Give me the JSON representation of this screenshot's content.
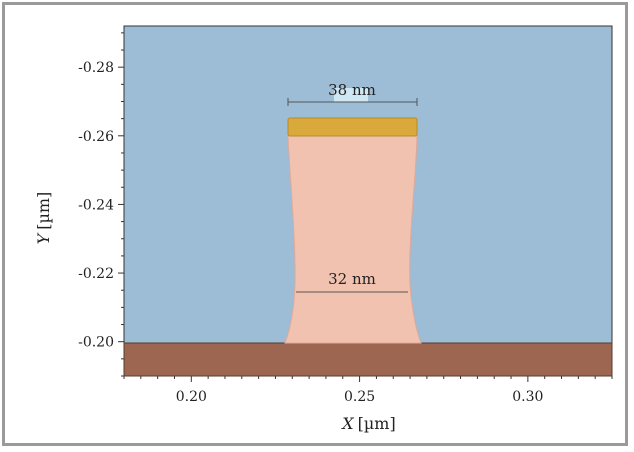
{
  "chart_data": {
    "type": "diagram",
    "xlabel_var": "X",
    "xlabel_unit": "[µm]",
    "ylabel_var": "Y",
    "ylabel_unit": "[µm]",
    "xlim": [
      0.18,
      0.325
    ],
    "ylim": [
      -0.19,
      -0.292
    ],
    "x_ticks": [
      "0.20",
      "0.25",
      "0.30"
    ],
    "x_tick_values": [
      0.2,
      0.25,
      0.3
    ],
    "y_ticks": [
      "-0.28",
      "-0.26",
      "-0.24",
      "-0.22",
      "-0.20"
    ],
    "y_tick_values": [
      -0.28,
      -0.26,
      -0.24,
      -0.22,
      -0.2
    ],
    "annotations": [
      {
        "text": "38 nm",
        "y": -0.2636,
        "x_from": 0.2315,
        "x_to": 0.2685
      },
      {
        "text": "32 nm",
        "y": -0.2146,
        "x_from": 0.234,
        "x_to": 0.266
      }
    ],
    "colors": {
      "background": "#9dbcd6",
      "substrate": "#9c6651",
      "resist": "#f2c2b1",
      "cap": "#d9a93b"
    }
  }
}
